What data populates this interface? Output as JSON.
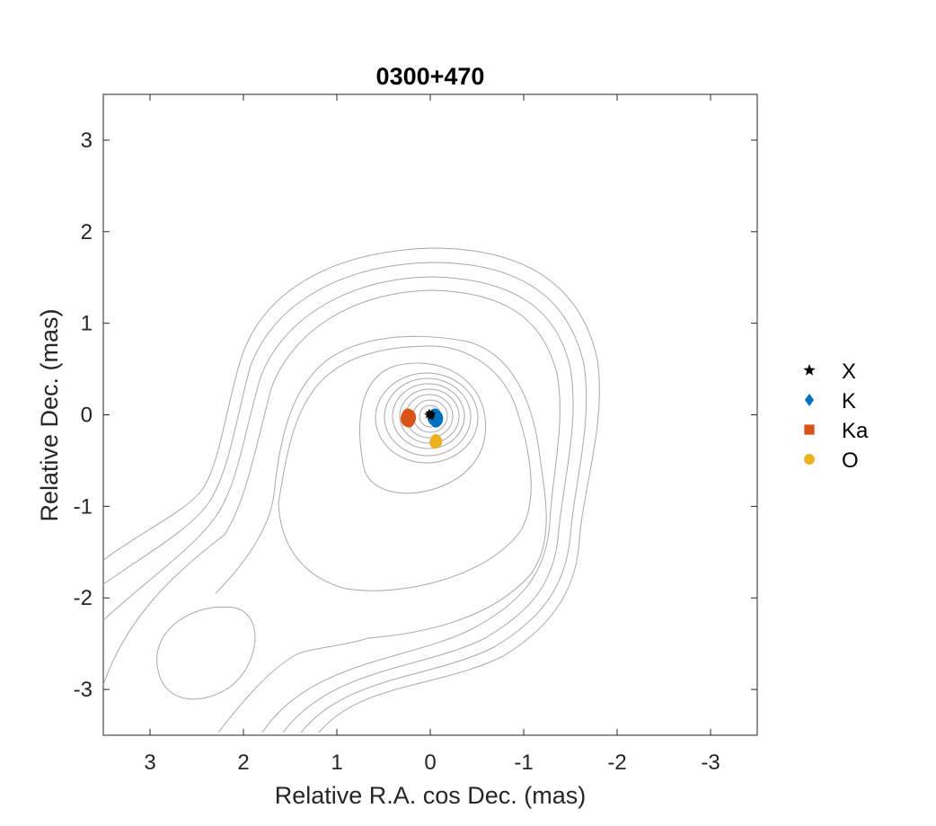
{
  "chart_data": {
    "type": "scatter",
    "title": "0300+470",
    "xlabel": "Relative R.A. cos Dec. (mas)",
    "ylabel": "Relative Dec. (mas)",
    "xlim": [
      3.5,
      -3.5
    ],
    "ylim": [
      -3.5,
      3.5
    ],
    "x_reversed": true,
    "xticks": [
      3,
      2,
      1,
      0,
      -1,
      -2,
      -3
    ],
    "xtick_labels": [
      "3",
      "2",
      "1",
      "0",
      "-1",
      "-2",
      "-3"
    ],
    "yticks": [
      3,
      2,
      1,
      0,
      -1,
      -2,
      -3
    ],
    "ytick_labels": [
      "3",
      "2",
      "1",
      "0",
      "-1",
      "-2",
      "-3"
    ],
    "grid": false,
    "legend_position": "right",
    "series": [
      {
        "name": "X",
        "marker": "star",
        "color": "#000000",
        "points": [
          {
            "x": 0.02,
            "y": 0.0
          },
          {
            "x": 0.0,
            "y": -0.02
          },
          {
            "x": -0.02,
            "y": 0.01
          },
          {
            "x": 0.01,
            "y": 0.02
          },
          {
            "x": -0.01,
            "y": -0.01
          }
        ]
      },
      {
        "name": "K",
        "marker": "diamond",
        "color": "#0072BD",
        "points": [
          {
            "x": -0.05,
            "y": -0.02
          },
          {
            "x": -0.06,
            "y": -0.05
          },
          {
            "x": -0.04,
            "y": -0.03
          },
          {
            "x": -0.07,
            "y": -0.04
          }
        ]
      },
      {
        "name": "Ka",
        "marker": "square",
        "color": "#D95319",
        "points": [
          {
            "x": 0.24,
            "y": -0.02
          },
          {
            "x": 0.23,
            "y": -0.05
          },
          {
            "x": 0.25,
            "y": -0.04
          },
          {
            "x": 0.22,
            "y": -0.03
          }
        ]
      },
      {
        "name": "O",
        "marker": "circle",
        "color": "#EDB120",
        "points": [
          {
            "x": -0.06,
            "y": -0.28
          },
          {
            "x": -0.05,
            "y": -0.3
          },
          {
            "x": -0.07,
            "y": -0.29
          }
        ]
      }
    ],
    "contour_color": "#a9a9a9"
  }
}
